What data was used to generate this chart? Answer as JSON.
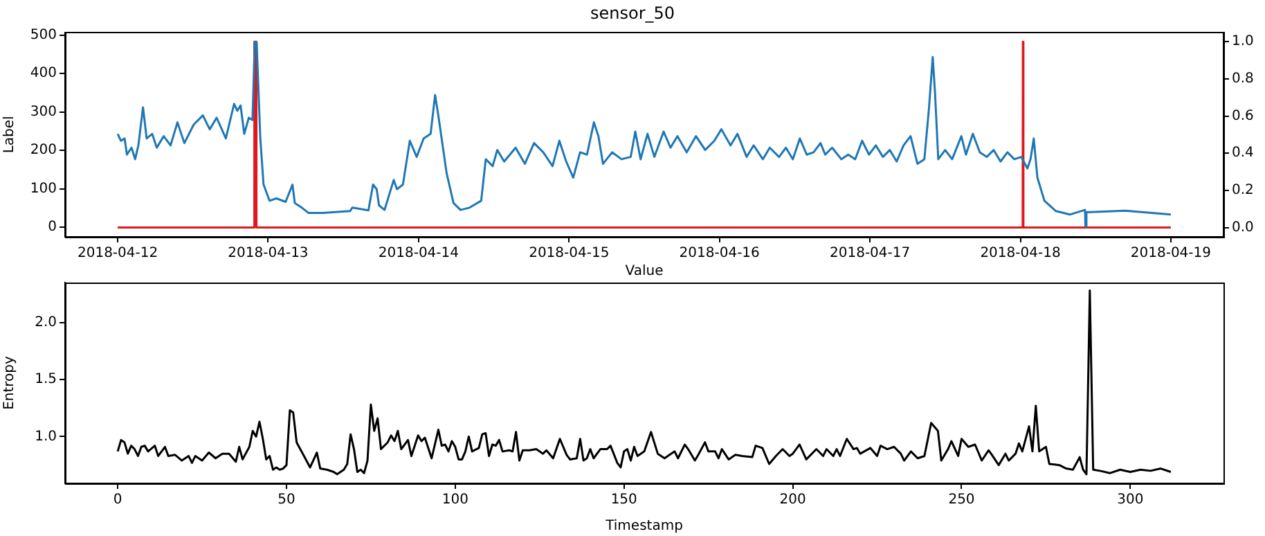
{
  "chart_data": [
    {
      "type": "line",
      "title": "sensor_50",
      "xlabel": "Value",
      "ylabel": "Label",
      "xlim": [
        "2018-04-11T15:36",
        "2018-04-19T08:24"
      ],
      "xticks": [
        "2018-04-12",
        "2018-04-13",
        "2018-04-14",
        "2018-04-15",
        "2018-04-16",
        "2018-04-17",
        "2018-04-18",
        "2018-04-19"
      ],
      "ylim": [
        -25,
        507
      ],
      "yticks": [
        0,
        100,
        200,
        300,
        400,
        500
      ],
      "y2lim": [
        -0.05,
        1.05
      ],
      "y2ticks": [
        {
          "value": 0,
          "label": "0.0"
        },
        {
          "value": 0.2,
          "label": "0.2"
        },
        {
          "value": 0.4,
          "label": "0.4"
        },
        {
          "value": 0.6,
          "label": "0.6"
        },
        {
          "value": 0.8,
          "label": "0.8"
        },
        {
          "value": 1,
          "label": "1.0"
        }
      ],
      "series": [
        {
          "color": "#1f77b4",
          "x": [
            "2018-04-12T00:00",
            "2018-04-12T00:31",
            "2018-04-12T01:06",
            "2018-04-12T01:28",
            "2018-04-12T02:12",
            "2018-04-12T02:47",
            "2018-04-12T03:18",
            "2018-04-12T04:02",
            "2018-04-12T04:37",
            "2018-04-12T05:30",
            "2018-04-12T06:14",
            "2018-04-12T07:20",
            "2018-04-12T08:26",
            "2018-04-12T09:32",
            "2018-04-12T10:38",
            "2018-04-12T12:07",
            "2018-04-12T13:35",
            "2018-04-12T14:41",
            "2018-04-12T15:47",
            "2018-04-12T17:15",
            "2018-04-12T18:34",
            "2018-04-12T19:05",
            "2018-04-12T19:36",
            "2018-04-12T20:11",
            "2018-04-12T20:55",
            "2018-04-12T21:30",
            "2018-04-12T21:52",
            "2018-04-12T22:10",
            "2018-04-12T22:45",
            "2018-04-12T23:16",
            "2018-04-13T00:13",
            "2018-04-13T01:19",
            "2018-04-13T02:47",
            "2018-04-13T03:53",
            "2018-04-13T04:15",
            "2018-04-13T05:22",
            "2018-04-13T06:27",
            "2018-04-13T08:40",
            "2018-04-13T13:04",
            "2018-04-13T13:26",
            "2018-04-13T16:00",
            "2018-04-13T16:44",
            "2018-04-13T17:19",
            "2018-04-13T17:41",
            "2018-04-13T18:34",
            "2018-04-13T20:02",
            "2018-04-13T20:33",
            "2018-04-13T21:30",
            "2018-04-13T22:36",
            "2018-04-13T23:42",
            "2018-04-14T00:48",
            "2018-04-14T01:55",
            "2018-04-14T02:38",
            "2018-04-14T03:09",
            "2018-04-14T04:28",
            "2018-04-14T05:34",
            "2018-04-14T06:41",
            "2018-04-14T08:08",
            "2018-04-14T09:59",
            "2018-04-14T10:43",
            "2018-04-14T11:49",
            "2018-04-14T12:33",
            "2018-04-14T13:39",
            "2018-04-14T15:29",
            "2018-04-14T16:57",
            "2018-04-14T18:25",
            "2018-04-14T19:53",
            "2018-04-14T21:22",
            "2018-04-14T22:27",
            "2018-04-14T23:33",
            "2018-04-15T00:40",
            "2018-04-15T01:46",
            "2018-04-15T02:52",
            "2018-04-15T03:58",
            "2018-04-15T04:41",
            "2018-04-15T05:25",
            "2018-04-15T06:53",
            "2018-04-15T08:22",
            "2018-04-15T09:50",
            "2018-04-15T10:34",
            "2018-04-15T11:25",
            "2018-04-15T12:31",
            "2018-04-15T13:37",
            "2018-04-15T15:05",
            "2018-04-15T16:11",
            "2018-04-15T17:18",
            "2018-04-15T18:46",
            "2018-04-15T20:15",
            "2018-04-15T21:43",
            "2018-04-15T23:11",
            "2018-04-16T00:18",
            "2018-04-16T01:46",
            "2018-04-16T02:52",
            "2018-04-16T04:20",
            "2018-04-16T05:27",
            "2018-04-16T06:55",
            "2018-04-16T08:01",
            "2018-04-16T09:30",
            "2018-04-16T10:36",
            "2018-04-16T11:42",
            "2018-04-16T12:49",
            "2018-04-16T13:55",
            "2018-04-16T15:01",
            "2018-04-16T16:07",
            "2018-04-16T16:52",
            "2018-04-16T17:58",
            "2018-04-16T19:26",
            "2018-04-16T20:32",
            "2018-04-16T21:39",
            "2018-04-16T22:45",
            "2018-04-16T23:51",
            "2018-04-17T00:57",
            "2018-04-17T02:04",
            "2018-04-17T03:10",
            "2018-04-17T04:16",
            "2018-04-17T05:22",
            "2018-04-17T06:29",
            "2018-04-17T07:35",
            "2018-04-17T08:41",
            "2018-04-17T09:25",
            "2018-04-17T10:01",
            "2018-04-17T10:23",
            "2018-04-17T10:54",
            "2018-04-17T12:00",
            "2018-04-17T13:07",
            "2018-04-17T14:35",
            "2018-04-17T15:19",
            "2018-04-17T16:25",
            "2018-04-17T17:32",
            "2018-04-17T18:38",
            "2018-04-17T19:44",
            "2018-04-17T20:50",
            "2018-04-17T21:56",
            "2018-04-17T23:02",
            "2018-04-18T00:09",
            "2018-04-18T01:07",
            "2018-04-18T01:37",
            "2018-04-18T02:08",
            "2018-04-18T02:43",
            "2018-04-18T03:50",
            "2018-04-18T05:40",
            "2018-04-18T07:53",
            "2018-04-18T10:19",
            "2018-04-18T10:23",
            "2018-04-18T10:32",
            "2018-04-18T16:43",
            "2018-04-19T00:00"
          ],
          "values": [
            243,
            225,
            231,
            189,
            207,
            177,
            213,
            312,
            231,
            243,
            207,
            237,
            213,
            273,
            219,
            267,
            291,
            255,
            285,
            231,
            321,
            303,
            317,
            243,
            285,
            279,
            482,
            482,
            231,
            111,
            69,
            75,
            66,
            111,
            63,
            51,
            37,
            37,
            42,
            51,
            44,
            111,
            99,
            57,
            45,
            123,
            99,
            111,
            225,
            183,
            231,
            243,
            344,
            291,
            141,
            63,
            45,
            51,
            69,
            177,
            159,
            201,
            171,
            207,
            165,
            219,
            195,
            159,
            225,
            171,
            129,
            195,
            189,
            273,
            237,
            165,
            195,
            177,
            183,
            249,
            177,
            243,
            183,
            249,
            207,
            237,
            195,
            237,
            201,
            225,
            255,
            213,
            243,
            183,
            213,
            177,
            207,
            183,
            207,
            177,
            231,
            189,
            195,
            219,
            189,
            207,
            177,
            189,
            177,
            225,
            189,
            213,
            183,
            201,
            171,
            213,
            237,
            165,
            177,
            309,
            443,
            350,
            177,
            201,
            177,
            237,
            189,
            243,
            195,
            183,
            201,
            171,
            195,
            177,
            183,
            153,
            177,
            231,
            129,
            69,
            42,
            33,
            45,
            1,
            39,
            43,
            33
          ]
        },
        {
          "color": "#e0181e",
          "axis": "y2",
          "x": [
            "2018-04-12T00:00",
            "2018-04-12T21:46",
            "2018-04-12T21:48",
            "2018-04-12T22:06",
            "2018-04-12T22:08",
            "2018-04-18T00:22",
            "2018-04-18T00:24",
            "2018-04-18T00:28",
            "2018-04-18T00:30",
            "2018-04-19T00:00"
          ],
          "values": [
            0,
            0,
            1,
            1,
            0,
            0,
            1,
            1,
            0,
            0
          ]
        }
      ]
    },
    {
      "type": "line",
      "xlabel": "Timestamp",
      "ylabel": "Entropy",
      "xlim": [
        -15.6,
        327.6
      ],
      "xticks": [
        0,
        50,
        100,
        150,
        200,
        250,
        300
      ],
      "ylim": [
        0.59,
        2.35
      ],
      "yticks": [
        {
          "value": 1,
          "label": "1.0"
        },
        {
          "value": 1.5,
          "label": "1.5"
        },
        {
          "value": 2,
          "label": "2.0"
        }
      ],
      "series": [
        {
          "color": "#000000",
          "x": [
            0,
            1,
            2,
            3,
            4,
            5,
            6,
            7,
            8,
            9,
            11,
            12,
            14,
            15,
            17,
            19,
            21,
            22,
            23,
            25,
            27,
            29,
            31,
            33,
            35,
            36,
            37,
            39,
            40,
            41,
            42,
            43,
            44,
            45,
            46,
            47,
            48,
            49,
            50,
            51,
            52,
            53,
            55,
            57,
            59,
            60,
            62,
            64,
            65,
            67,
            68,
            69,
            70,
            71,
            72,
            73,
            74,
            75,
            76,
            77,
            78,
            80,
            81,
            82,
            83,
            84,
            86,
            87,
            89,
            90,
            91,
            93,
            95,
            96,
            97,
            98,
            99,
            100,
            101,
            102,
            103,
            104,
            105,
            107,
            108,
            109,
            110,
            111,
            112,
            113,
            114,
            116,
            117,
            118,
            119,
            120,
            122,
            124,
            126,
            127,
            129,
            131,
            133,
            134,
            136,
            137,
            138,
            139,
            140,
            141,
            143,
            145,
            146,
            148,
            149,
            150,
            151,
            152,
            153,
            154,
            156,
            158,
            160,
            162,
            165,
            166,
            168,
            169,
            171,
            172,
            174,
            175,
            177,
            178,
            179,
            181,
            183,
            185,
            188,
            189,
            191,
            193,
            195,
            197,
            199,
            200,
            202,
            204,
            207,
            209,
            210,
            212,
            213,
            214,
            216,
            218,
            219,
            220,
            223,
            225,
            226,
            228,
            230,
            232,
            233,
            235,
            237,
            239,
            241,
            243,
            244,
            246,
            247,
            249,
            250,
            252,
            254,
            256,
            258,
            259,
            261,
            263,
            264,
            266,
            267,
            268,
            270,
            271,
            272,
            273,
            275,
            276,
            279,
            281,
            283,
            285,
            286,
            287,
            288,
            289,
            291,
            294,
            297,
            300,
            303,
            306,
            309,
            312
          ],
          "values": [
            0.87,
            0.97,
            0.95,
            0.85,
            0.92,
            0.89,
            0.83,
            0.91,
            0.92,
            0.87,
            0.92,
            0.83,
            0.91,
            0.83,
            0.84,
            0.79,
            0.83,
            0.77,
            0.83,
            0.79,
            0.86,
            0.81,
            0.85,
            0.85,
            0.78,
            0.91,
            0.8,
            0.91,
            1.05,
            1,
            1.13,
            0.98,
            0.8,
            0.83,
            0.71,
            0.73,
            0.71,
            0.72,
            0.75,
            1.23,
            1.21,
            0.95,
            0.84,
            0.73,
            0.86,
            0.72,
            0.71,
            0.69,
            0.67,
            0.71,
            0.76,
            1.02,
            0.89,
            0.69,
            0.71,
            0.68,
            0.79,
            1.28,
            1.05,
            1.16,
            0.89,
            0.95,
            1.01,
            0.96,
            1.05,
            0.89,
            0.97,
            0.83,
            1.01,
            0.96,
            0.99,
            0.81,
            1.06,
            0.92,
            0.93,
            0.87,
            0.96,
            0.91,
            0.8,
            0.8,
            0.87,
            1,
            0.87,
            0.9,
            1.02,
            1.03,
            0.83,
            0.93,
            0.92,
            0.97,
            0.87,
            0.88,
            0.87,
            1.04,
            0.79,
            0.88,
            0.88,
            0.89,
            0.85,
            0.88,
            0.81,
            0.98,
            0.84,
            0.8,
            0.81,
            0.98,
            0.79,
            0.81,
            0.89,
            0.81,
            0.89,
            0.89,
            0.92,
            0.77,
            0.73,
            0.87,
            0.89,
            0.79,
            0.91,
            0.83,
            0.87,
            1.04,
            0.85,
            0.81,
            0.87,
            0.81,
            0.93,
            0.89,
            0.79,
            0.84,
            0.95,
            0.87,
            0.87,
            0.81,
            0.89,
            0.8,
            0.84,
            0.83,
            0.82,
            0.92,
            0.9,
            0.76,
            0.83,
            0.89,
            0.83,
            0.85,
            0.93,
            0.8,
            0.89,
            0.83,
            0.89,
            0.83,
            0.89,
            0.83,
            0.98,
            0.89,
            0.9,
            0.85,
            0.9,
            0.83,
            0.92,
            0.89,
            0.91,
            0.85,
            0.79,
            0.87,
            0.81,
            0.83,
            1.12,
            1.05,
            0.79,
            0.89,
            0.96,
            0.83,
            0.98,
            0.91,
            0.93,
            0.79,
            0.88,
            0.84,
            0.75,
            0.85,
            0.79,
            0.85,
            0.94,
            0.87,
            1.09,
            0.87,
            1.27,
            0.87,
            0.91,
            0.76,
            0.75,
            0.72,
            0.71,
            0.82,
            0.71,
            0.67,
            2.28,
            0.71,
            0.7,
            0.68,
            0.71,
            0.69,
            0.71,
            0.7,
            0.72,
            0.69
          ]
        }
      ]
    }
  ]
}
